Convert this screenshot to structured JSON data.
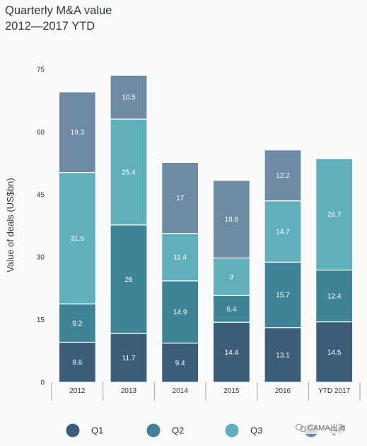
{
  "title": {
    "line1": "Quarterly M&A value",
    "line2": "2012—2017 YTD"
  },
  "colors": {
    "Q1": "#3c5d7a",
    "Q2": "#3f8397",
    "Q3": "#5fb0bc",
    "Q4": "#6f8aa5",
    "separator": "#ffffff",
    "axis": "#9aa3ab"
  },
  "chart_data": {
    "type": "bar",
    "stacked": true,
    "categories": [
      "2012",
      "2013",
      "2014",
      "2015",
      "2016",
      "YTD 2017"
    ],
    "series": [
      {
        "name": "Q1",
        "values": [
          9.6,
          11.7,
          9.4,
          14.4,
          13.1,
          14.5
        ]
      },
      {
        "name": "Q2",
        "values": [
          9.2,
          26,
          14.9,
          6.4,
          15.7,
          12.4
        ]
      },
      {
        "name": "Q3",
        "values": [
          31.5,
          25.4,
          11.4,
          9,
          14.7,
          26.7
        ]
      },
      {
        "name": "Q4",
        "values": [
          19.3,
          10.5,
          17,
          18.6,
          12.2,
          null
        ]
      }
    ],
    "labels": [
      [
        "9.6",
        "11.7",
        "9.4",
        "14.4",
        "13.1",
        "14.5"
      ],
      [
        "9.2",
        "26",
        "14.9",
        "6.4",
        "15.7",
        "12.4"
      ],
      [
        "31.5",
        "25.4",
        "11.4",
        "9",
        "14.7",
        "26.7"
      ],
      [
        "19.3",
        "10.5",
        "17",
        "18.6",
        "12.2",
        ""
      ]
    ],
    "ylabel": "Value of deals (US$bn)",
    "ylim": [
      0,
      75
    ],
    "yticks": [
      "0",
      "15",
      "30",
      "45",
      "60",
      "75"
    ],
    "ytick_values": [
      0,
      15,
      30,
      45,
      60,
      75
    ],
    "grid": false,
    "legend_placement": "bottom"
  },
  "legend": [
    {
      "key": "Q1",
      "label": "Q1",
      "icon": "circle"
    },
    {
      "key": "Q2",
      "label": "Q2",
      "icon": "circle"
    },
    {
      "key": "Q3",
      "label": "Q3",
      "icon": "circle"
    },
    {
      "key": "Q4",
      "label": "Q4",
      "icon": "circle"
    }
  ],
  "watermark": {
    "text": "CAMA出海",
    "icon": "wechat-icon"
  }
}
